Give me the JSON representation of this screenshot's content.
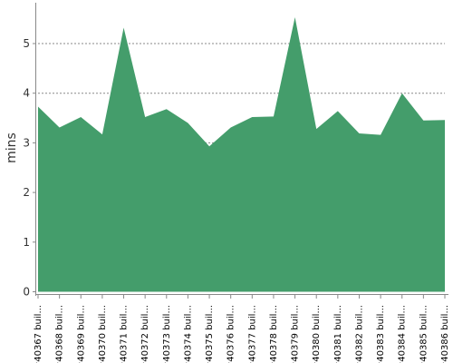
{
  "chart_data": {
    "type": "area",
    "ylabel": "mins",
    "ylim": [
      0,
      5.8
    ],
    "yticks": [
      0,
      1,
      2,
      3,
      4,
      5
    ],
    "grid": "horizontal-dotted",
    "colors": {
      "area": "#449D6B",
      "grid": "#888888",
      "axis": "#000000"
    },
    "categories": [
      "#40367 buil...",
      "#40368 buil...",
      "#40369 buil...",
      "#40370 buil...",
      "#40371 buil...",
      "#40372 buil...",
      "#40373 buil...",
      "#40374 buil...",
      "#40375 buil...",
      "#40376 buil...",
      "#40377 buil...",
      "#40378 buil...",
      "#40379 buil...",
      "#40380 buil...",
      "#40381 buil...",
      "#40382 buil...",
      "#40383 buil...",
      "#40384 buil...",
      "#40385 buil...",
      "#40386 buil..."
    ],
    "series": [
      {
        "values": [
          3.73,
          3.31,
          3.52,
          3.17,
          5.32,
          3.52,
          3.68,
          3.4,
          2.93,
          3.31,
          3.52,
          3.53,
          5.53,
          3.28,
          3.64,
          3.19,
          3.16,
          4.0,
          3.45,
          3.46
        ]
      }
    ]
  }
}
